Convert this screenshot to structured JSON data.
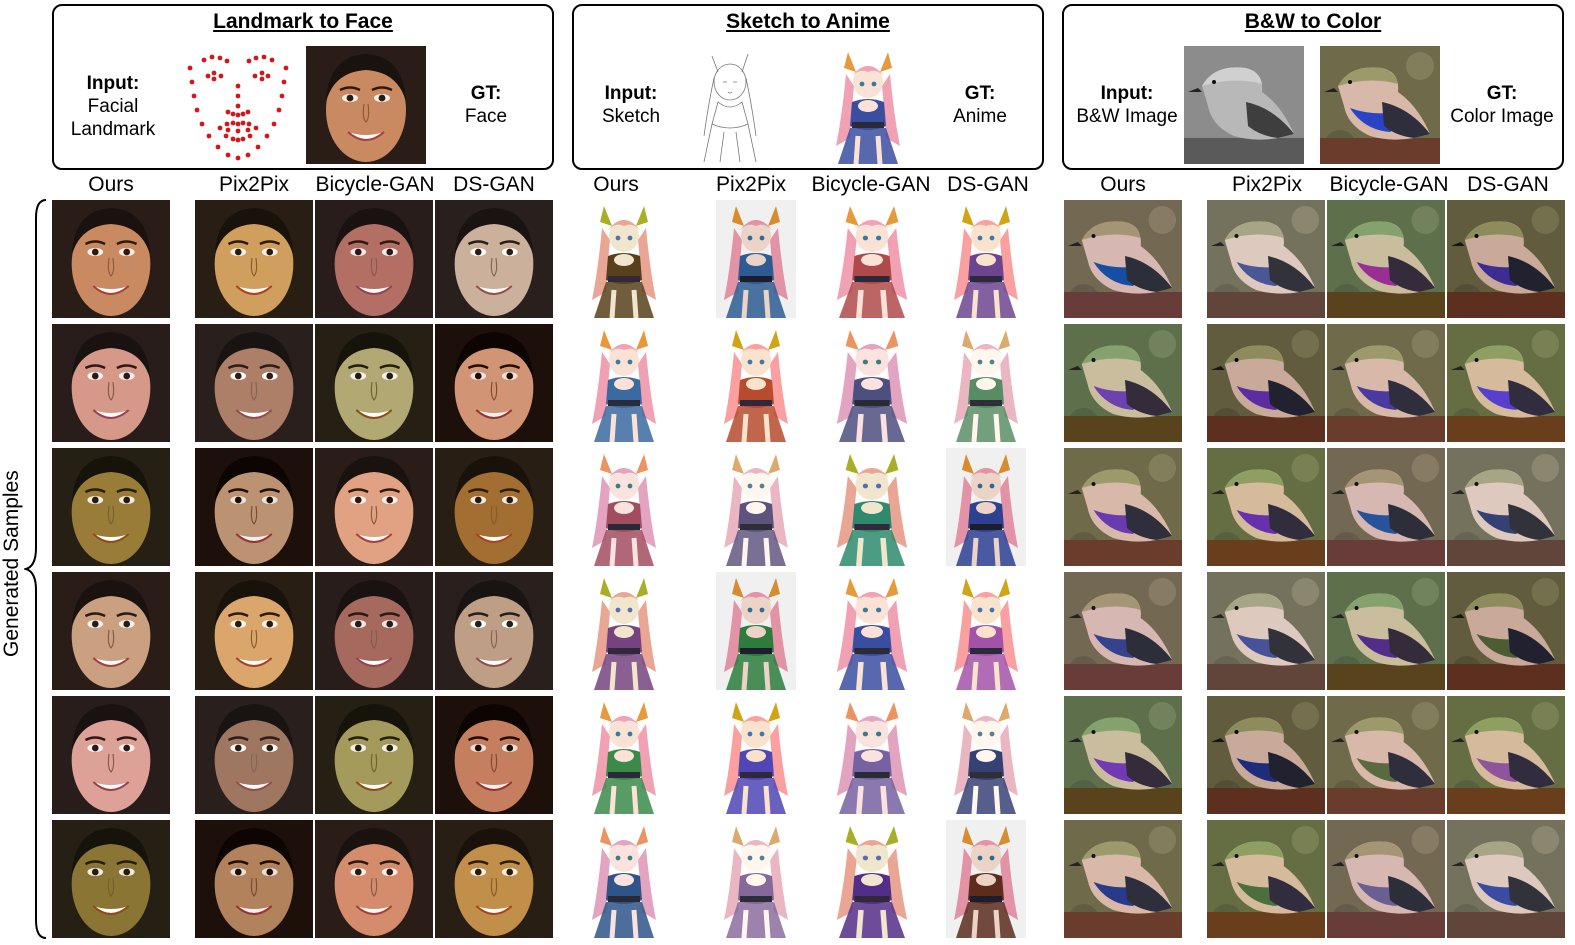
{
  "sections": [
    {
      "title": "Landmark to Face",
      "input_heading": "Input:",
      "input_text_1": "Facial",
      "input_text_2": "Landmark",
      "gt_heading": "GT:",
      "gt_text": "Face",
      "kind": "face"
    },
    {
      "title": "Sketch to Anime",
      "input_heading": "Input:",
      "input_text_1": "Sketch",
      "input_text_2": "",
      "gt_heading": "GT:",
      "gt_text": "Anime",
      "kind": "anime"
    },
    {
      "title": "B&W to Color",
      "input_heading": "Input:",
      "input_text_1": "B&W Image",
      "input_text_2": "",
      "gt_heading": "GT:",
      "gt_text": "Color Image",
      "kind": "bird"
    }
  ],
  "methods": [
    "Ours",
    "Pix2Pix",
    "Bicycle-GAN",
    "DS-GAN"
  ],
  "row_label": "Generated Samples",
  "rows": 6
}
